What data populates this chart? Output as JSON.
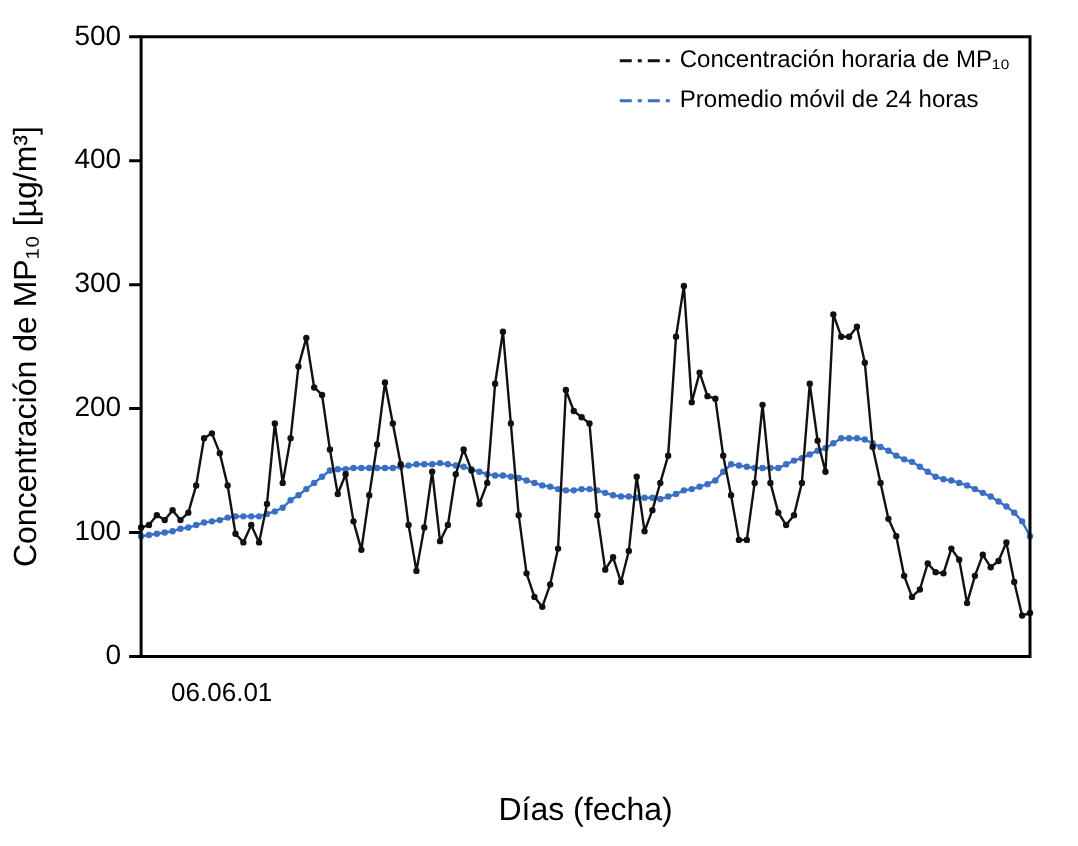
{
  "chart_data": {
    "type": "line",
    "xlabel": "Días (fecha)",
    "ylabel": "Concentración de MP₁₀ [µg/m³]",
    "categories": [
      null,
      null,
      null,
      null,
      null,
      null,
      null,
      null,
      null,
      null,
      null,
      null,
      null,
      null,
      null,
      null,
      null,
      null,
      null,
      null,
      null,
      null,
      null,
      null,
      null,
      null,
      null,
      null,
      null,
      null,
      null,
      null,
      null,
      null,
      null,
      null,
      null,
      null,
      null,
      null,
      null,
      null,
      null,
      null,
      null,
      null,
      null,
      null,
      null,
      null,
      null,
      null,
      null,
      null,
      null,
      null,
      null,
      null,
      null,
      null,
      null,
      null,
      null,
      null,
      null,
      null,
      null,
      null,
      null,
      null,
      null,
      null,
      null,
      null,
      null,
      null,
      null,
      null,
      null,
      null,
      null,
      null,
      null,
      null,
      null,
      null,
      null,
      null,
      null,
      null,
      null,
      null,
      null,
      null,
      null,
      null,
      null,
      null,
      null,
      null,
      null,
      null,
      null,
      null,
      null,
      null,
      null,
      null,
      null,
      null,
      null,
      null,
      null,
      null
    ],
    "annotations": [
      "06.06.01"
    ],
    "ylim": [
      0,
      500
    ],
    "yticks": [
      0,
      100,
      200,
      300,
      400,
      500
    ],
    "grid": false,
    "legend": "top right",
    "line_style": "solid",
    "marker": "circle",
    "series": [
      {
        "name": "Concentración horaria de MP₁₀",
        "color": "#111111",
        "values": [
          104,
          106,
          114,
          110,
          118,
          110,
          116,
          138,
          176,
          180,
          164,
          138,
          99,
          92,
          106,
          92,
          123,
          188,
          140,
          176,
          234,
          257,
          217,
          211,
          167,
          131,
          147,
          109,
          86,
          130,
          171,
          221,
          188,
          155,
          106,
          69,
          104,
          149,
          93,
          106,
          147,
          167,
          150,
          123,
          140,
          220,
          262,
          188,
          114,
          67,
          48,
          40,
          58,
          87,
          215,
          198,
          193,
          188,
          114,
          70,
          80,
          60,
          85,
          145,
          101,
          118,
          140,
          162,
          258,
          299,
          205,
          229,
          210,
          208,
          162,
          130,
          94,
          94,
          140,
          203,
          140,
          116,
          106,
          114,
          140,
          220,
          174,
          149,
          276,
          258,
          258,
          266,
          237,
          169,
          140,
          111,
          97,
          65,
          48,
          54,
          75,
          68,
          67,
          87,
          78,
          43,
          65,
          82,
          72,
          77,
          92,
          60,
          33,
          35
        ]
      },
      {
        "name": "Promedio móvil de 24 horas",
        "color": "#3a6fc4",
        "values": [
          97,
          98,
          99,
          100,
          101,
          103,
          104,
          106,
          108,
          109,
          110,
          112,
          113,
          113,
          113,
          113,
          115,
          117,
          120,
          126,
          130,
          135,
          140,
          145,
          150,
          151,
          151,
          152,
          152,
          152,
          152,
          152,
          152,
          153,
          154,
          155,
          155,
          155,
          156,
          155,
          154,
          153,
          151,
          149,
          147,
          146,
          146,
          145,
          144,
          142,
          140,
          138,
          137,
          135,
          134,
          134,
          135,
          135,
          134,
          132,
          130,
          129,
          129,
          128,
          128,
          128,
          127,
          129,
          131,
          134,
          135,
          137,
          139,
          142,
          149,
          155,
          154,
          153,
          152,
          152,
          152,
          152,
          155,
          158,
          160,
          163,
          166,
          168,
          172,
          176,
          176,
          176,
          175,
          172,
          169,
          166,
          162,
          159,
          157,
          153,
          149,
          145,
          143,
          142,
          140,
          138,
          135,
          132,
          129,
          125,
          121,
          116,
          109,
          97
        ]
      }
    ]
  }
}
